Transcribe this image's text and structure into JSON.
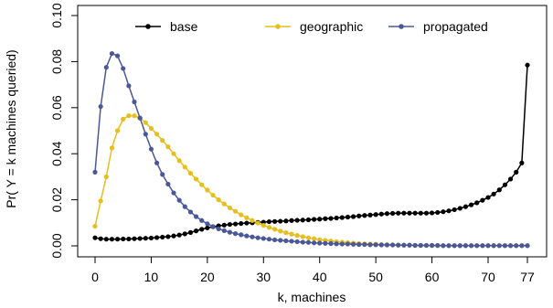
{
  "chart_data": {
    "type": "line",
    "xlabel": "k, machines",
    "ylabel": "Pr( Y = k machines queried)",
    "xlim": [
      0,
      77
    ],
    "ylim": [
      0,
      0.1
    ],
    "x_ticks": [
      0,
      10,
      20,
      30,
      40,
      50,
      60,
      70,
      77
    ],
    "y_ticks": [
      "0.00",
      "0.02",
      "0.04",
      "0.06",
      "0.08",
      "0.10"
    ],
    "grid": false,
    "legend_position": "top",
    "series": [
      {
        "name": "base",
        "color": "#000000",
        "values": [
          0.0035,
          0.0031,
          0.0029,
          0.0029,
          0.0029,
          0.003,
          0.003,
          0.0031,
          0.0032,
          0.0033,
          0.0034,
          0.0036,
          0.0038,
          0.004,
          0.0043,
          0.0047,
          0.0052,
          0.0058,
          0.0065,
          0.0072,
          0.0078,
          0.0083,
          0.0087,
          0.009,
          0.0093,
          0.0095,
          0.0097,
          0.0099,
          0.01,
          0.0102,
          0.0103,
          0.0105,
          0.0106,
          0.0107,
          0.0108,
          0.011,
          0.0111,
          0.0112,
          0.0113,
          0.0115,
          0.0116,
          0.0118,
          0.0119,
          0.0121,
          0.0123,
          0.0125,
          0.0127,
          0.013,
          0.0132,
          0.0134,
          0.0136,
          0.0138,
          0.014,
          0.0141,
          0.0142,
          0.0142,
          0.0142,
          0.0142,
          0.0142,
          0.0142,
          0.0143,
          0.0145,
          0.0148,
          0.0152,
          0.0157,
          0.0163,
          0.017,
          0.0178,
          0.0187,
          0.0198,
          0.021,
          0.0225,
          0.0243,
          0.0265,
          0.029,
          0.032,
          0.036,
          0.0785
        ]
      },
      {
        "name": "geographic",
        "color": "#E6BE1E",
        "values": [
          0.0085,
          0.0195,
          0.03,
          0.0425,
          0.05,
          0.055,
          0.0565,
          0.0565,
          0.0555,
          0.0535,
          0.051,
          0.0485,
          0.0458,
          0.043,
          0.04,
          0.037,
          0.0342,
          0.0315,
          0.029,
          0.0265,
          0.0242,
          0.022,
          0.02,
          0.0182,
          0.0165,
          0.015,
          0.0135,
          0.0122,
          0.011,
          0.0099,
          0.0089,
          0.008,
          0.0072,
          0.0064,
          0.0057,
          0.0051,
          0.0045,
          0.004,
          0.0035,
          0.0031,
          0.0027,
          0.0024,
          0.0021,
          0.0018,
          0.0016,
          0.0014,
          0.0012,
          0.001,
          0.0009,
          0.0008,
          0.0007,
          0.0006,
          0.0005,
          0.0004,
          0.0004,
          0.0003,
          0.0003,
          0.0002,
          0.0002,
          0.0002,
          0.0001,
          0.0001,
          0.0001,
          0.0001,
          0.0001,
          0.0001,
          0.0001,
          0.0001,
          0.0001,
          0.0001,
          0.0001,
          0.0001,
          0.0001,
          0.0001,
          0.0001,
          0.0001,
          0.0001,
          0.0001
        ]
      },
      {
        "name": "propagated",
        "color": "#4A5899",
        "values": [
          0.032,
          0.0605,
          0.0775,
          0.0835,
          0.0825,
          0.077,
          0.0695,
          0.0625,
          0.0555,
          0.0485,
          0.042,
          0.036,
          0.031,
          0.0268,
          0.023,
          0.0198,
          0.017,
          0.0147,
          0.0127,
          0.011,
          0.0096,
          0.0084,
          0.0074,
          0.0066,
          0.0059,
          0.0053,
          0.0048,
          0.0043,
          0.0039,
          0.0035,
          0.0032,
          0.0029,
          0.0026,
          0.0024,
          0.0022,
          0.002,
          0.0018,
          0.0016,
          0.0015,
          0.0013,
          0.0012,
          0.0011,
          0.001,
          0.0009,
          0.0008,
          0.0008,
          0.0007,
          0.0006,
          0.0006,
          0.0005,
          0.0005,
          0.0004,
          0.0004,
          0.0004,
          0.0003,
          0.0003,
          0.0003,
          0.0002,
          0.0002,
          0.0002,
          0.0002,
          0.0002,
          0.0001,
          0.0001,
          0.0001,
          0.0001,
          0.0001,
          0.0001,
          0.0001,
          0.0001,
          0.0001,
          0.0001,
          0.0001,
          0.0001,
          0.0001,
          0.0001,
          0.0001,
          0.0001
        ]
      }
    ]
  }
}
